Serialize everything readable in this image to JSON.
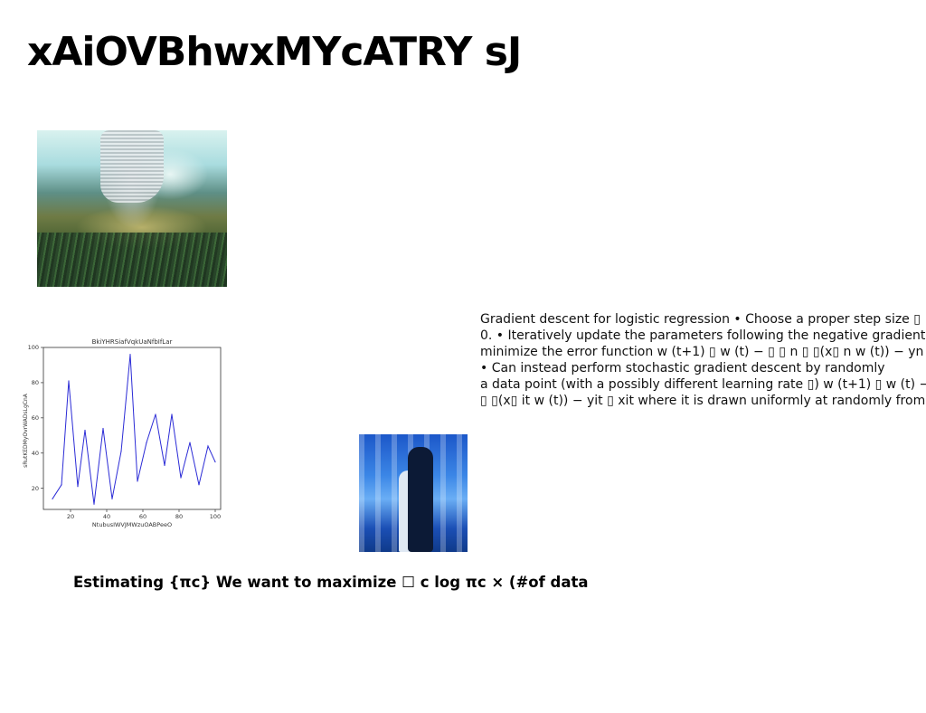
{
  "slide": {
    "title": "xAiOVBhwxMYcATRY sJ",
    "paragraph_lines": [
      "Gradient descent for logistic regression • Choose a proper step size ▯",
      "0. • Iteratively update the parameters following the negative gradient",
      "minimize the error function w (t+1) ▯ w (t) − ▯ ▯ n ▯ ▯(x▯ n w (t)) − yn ▯",
      "• Can instead perform stochastic gradient descent by randomly",
      "a data point (with a possibly different learning rate ▯) w (t+1) ▯ w (t) −",
      "▯ ▯(x▯ it w (t)) − yit ▯ xit where it is drawn uniformly at randomly from"
    ],
    "subheading": "Estimating {πc} We want to maximize ☐ c log πc × (#of data"
  },
  "images": {
    "top_photo": "landscape-photo",
    "bottom_photo": "subway-couple-photo"
  },
  "chart_data": {
    "type": "line",
    "title": "BkiYHRSiafVqkUaNfbIfLar",
    "xlabel": "NtubusIWVJMWzuOABPeeO",
    "ylabel": "sRutKEDMyOvrWADsLgCnA",
    "xlim": [
      5,
      103
    ],
    "ylim": [
      8,
      100
    ],
    "xticks": [
      20,
      40,
      60,
      80,
      100
    ],
    "yticks": [
      20,
      40,
      60,
      80,
      100
    ],
    "grid": false,
    "series": [
      {
        "color": "#2b2bd6",
        "x": [
          10,
          15,
          19,
          24,
          28,
          33,
          38,
          43,
          48,
          53,
          57,
          62,
          67,
          72,
          76,
          81,
          86,
          91,
          96,
          100
        ],
        "y": [
          14,
          22,
          81,
          21,
          53,
          11,
          54,
          14,
          41,
          96,
          24,
          46,
          62,
          33,
          62,
          26,
          46,
          22,
          44,
          35
        ]
      }
    ]
  }
}
